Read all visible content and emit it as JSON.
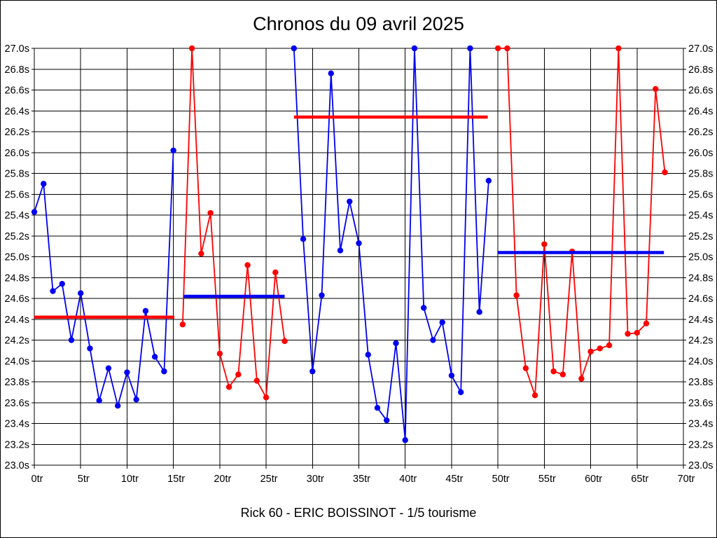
{
  "chart_data": {
    "type": "line",
    "title": "Chronos du 09 avril 2025",
    "caption": "Rick 60 - ERIC BOISSINOT - 1/5 tourisme",
    "x_unit": "tr",
    "y_unit": "s",
    "xlim": [
      0,
      70
    ],
    "ylim": [
      23.0,
      27.0
    ],
    "x_tick_step": 5,
    "y_tick_step": 0.2,
    "grid": true,
    "legend": "none",
    "x_ticks": [
      "0tr",
      "5tr",
      "10tr",
      "15tr",
      "20tr",
      "25tr",
      "30tr",
      "35tr",
      "40tr",
      "45tr",
      "50tr",
      "55tr",
      "60tr",
      "65tr",
      "70tr"
    ],
    "y_ticks": [
      "27.0s",
      "26.8s",
      "26.6s",
      "26.4s",
      "26.2s",
      "26.0s",
      "25.8s",
      "25.6s",
      "25.4s",
      "25.2s",
      "25.0s",
      "24.8s",
      "24.6s",
      "24.4s",
      "24.2s",
      "24.0s",
      "23.8s",
      "23.6s",
      "23.4s",
      "23.2s",
      "23.0s"
    ],
    "colors": {
      "blue": "#0000f2",
      "red": "#ff0000",
      "grid": "#000000"
    },
    "series": [
      {
        "name": "stint-1-blue",
        "color": "#0000f2",
        "start_lap": 0,
        "values": [
          25.43,
          25.7,
          24.67,
          24.74,
          24.2,
          24.65,
          24.12,
          23.62,
          23.93,
          23.57,
          23.89,
          23.63,
          24.48,
          24.04,
          23.9,
          26.02
        ]
      },
      {
        "name": "stint-2-red",
        "color": "#ff0000",
        "start_lap": 16,
        "values": [
          24.35,
          27.0,
          25.03,
          25.42,
          24.07,
          23.75,
          23.87,
          24.92,
          23.81,
          23.65,
          24.85,
          24.19
        ]
      },
      {
        "name": "stint-3-blue",
        "color": "#0000f2",
        "start_lap": 28,
        "values": [
          27.0,
          25.17,
          23.9,
          24.63,
          26.76,
          25.06,
          25.53,
          25.13,
          24.06,
          23.55,
          23.43,
          24.17,
          23.24,
          27.0,
          24.51,
          24.2,
          24.37,
          23.86,
          23.7,
          27.0,
          24.47,
          25.73
        ]
      },
      {
        "name": "stint-4-red",
        "color": "#ff0000",
        "start_lap": 50,
        "values": [
          27.0,
          27.0,
          24.63,
          23.93,
          23.67,
          25.12,
          23.9,
          23.87,
          25.05,
          23.83,
          24.09,
          24.12,
          24.15,
          27.0,
          24.26,
          24.27,
          24.36,
          26.61,
          25.81
        ]
      }
    ],
    "average_lines": [
      {
        "name": "avg-line-1",
        "color": "#ff0000",
        "value": 24.42,
        "from_lap": 0,
        "to_lap": 15.1
      },
      {
        "name": "avg-line-2",
        "color": "#0000f2",
        "value": 24.62,
        "from_lap": 16.1,
        "to_lap": 27.0
      },
      {
        "name": "avg-line-3",
        "color": "#ff0000",
        "value": 26.34,
        "from_lap": 28.0,
        "to_lap": 48.9
      },
      {
        "name": "avg-line-4",
        "color": "#0000f2",
        "value": 25.04,
        "from_lap": 50.0,
        "to_lap": 67.9
      }
    ]
  }
}
